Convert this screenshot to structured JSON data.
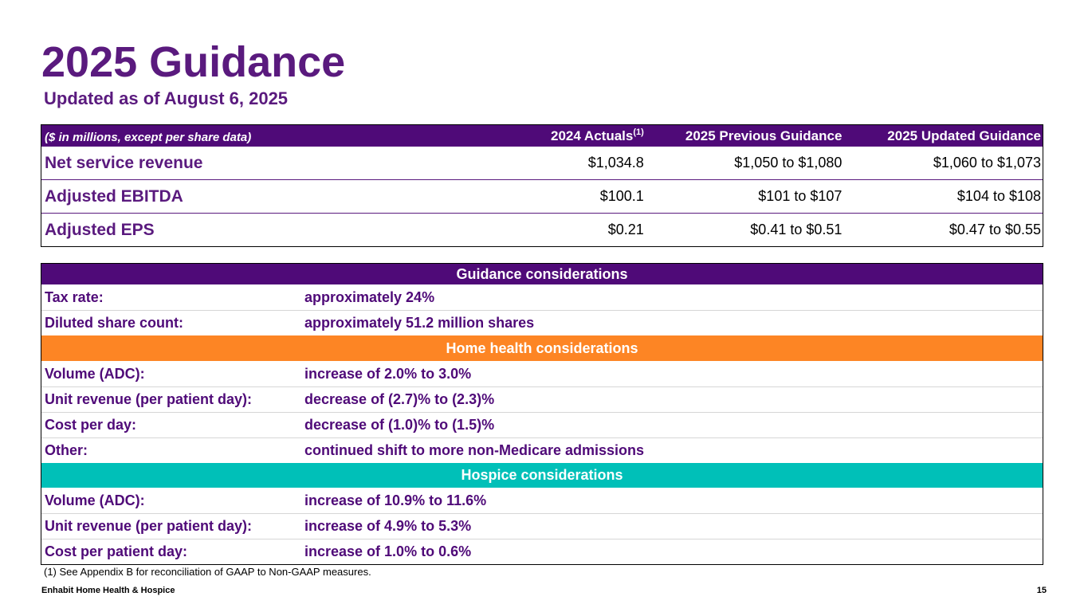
{
  "title": "2025 Guidance",
  "subtitle": "Updated as of August 6, 2025",
  "financials": {
    "header": {
      "label": "($ in millions, except per share data)",
      "col1": "2024 Actuals",
      "col1_sup": "(1)",
      "col2": "2025 Previous Guidance",
      "col3": "2025 Updated Guidance"
    },
    "rows": [
      {
        "label": "Net service revenue",
        "actual": "$1,034.8",
        "previous": "$1,050 to $1,080",
        "updated": "$1,060 to $1,073"
      },
      {
        "label": "Adjusted EBITDA",
        "actual": "$100.1",
        "previous": "$101 to $107",
        "updated": "$104 to $108"
      },
      {
        "label": "Adjusted EPS",
        "actual": "$0.21",
        "previous": "$0.41 to $0.51",
        "updated": "$0.47 to $0.55"
      }
    ]
  },
  "considerations": {
    "guidance_header": "Guidance considerations",
    "guidance_rows": [
      {
        "label": "Tax rate:",
        "value": "approximately 24%"
      },
      {
        "label": "Diluted share count:",
        "value": "approximately 51.2 million shares"
      }
    ],
    "home_health_header": "Home health considerations",
    "home_health_rows": [
      {
        "label": "Volume (ADC):",
        "value": "increase of 2.0% to 3.0%"
      },
      {
        "label": "Unit revenue (per patient day):",
        "value": "decrease of (2.7)% to (2.3)%"
      },
      {
        "label": "Cost per day:",
        "value": "decrease of (1.0)% to (1.5)%"
      },
      {
        "label": "Other:",
        "value": "continued shift to more non-Medicare admissions"
      }
    ],
    "hospice_header": "Hospice considerations",
    "hospice_rows": [
      {
        "label": "Volume (ADC):",
        "value": "increase of 10.9% to 11.6%"
      },
      {
        "label": "Unit revenue (per patient day):",
        "value": "increase of 4.9% to 5.3%"
      },
      {
        "label": "Cost per patient day:",
        "value": "increase of 1.0% to 0.6%"
      }
    ]
  },
  "footnote": "(1) See Appendix B for reconciliation of GAAP to Non-GAAP measures.",
  "footer": {
    "company": "Enhabit Home Health & Hospice",
    "page_number": "15"
  },
  "colors": {
    "purple": "#4f0a78",
    "orange": "#fd8524",
    "teal": "#00c0b8"
  }
}
